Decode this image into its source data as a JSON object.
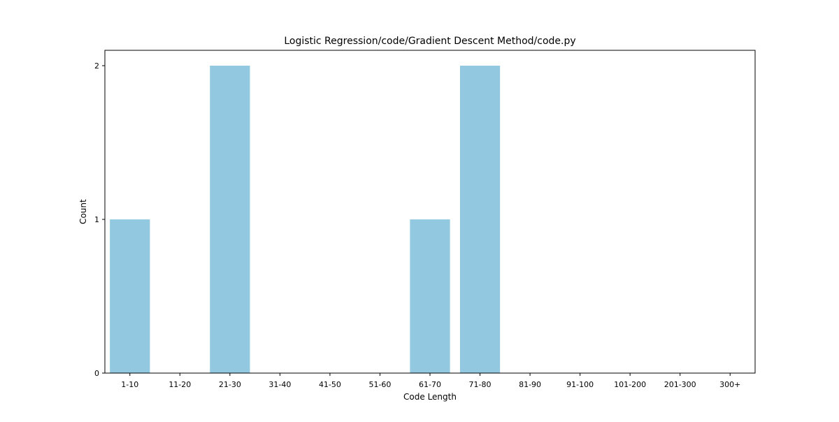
{
  "chart_data": {
    "type": "bar",
    "title": "Logistic Regression/code/Gradient Descent Method/code.py",
    "xlabel": "Code Length",
    "ylabel": "Count",
    "categories": [
      "1-10",
      "11-20",
      "21-30",
      "31-40",
      "41-50",
      "51-60",
      "61-70",
      "71-80",
      "81-90",
      "91-100",
      "101-200",
      "201-300",
      "300+"
    ],
    "values": [
      1,
      0,
      2,
      0,
      0,
      0,
      1,
      2,
      0,
      0,
      0,
      0,
      0
    ],
    "yticks": [
      0,
      1,
      2
    ],
    "ylim": [
      0,
      2.1
    ],
    "bar_color": "#92c9e0",
    "grid": false,
    "legend": "none"
  }
}
